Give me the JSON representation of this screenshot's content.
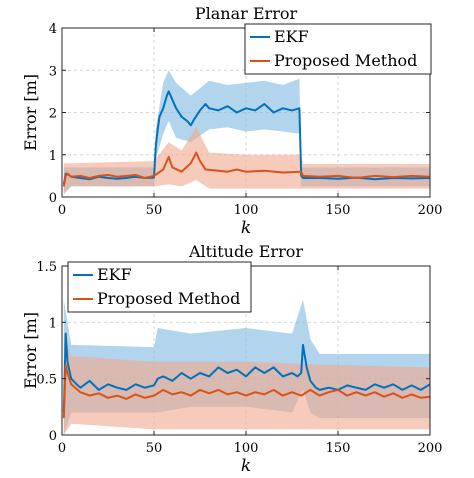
{
  "chart_data": [
    {
      "type": "line",
      "title": "Planar Error",
      "xlabel": "k",
      "ylabel": "Error [m]",
      "xlim": [
        0,
        200
      ],
      "ylim": [
        0,
        4
      ],
      "xticks": [
        "0",
        "50",
        "100",
        "150",
        "200"
      ],
      "yticks": [
        "0",
        "1",
        "2",
        "3",
        "4"
      ],
      "grid": true,
      "legend_position": "top-right",
      "series": [
        {
          "name": "EKF",
          "color": "#0072BD",
          "band_color": "#7FB7E0",
          "points": [
            [
              1,
              0.3
            ],
            [
              2,
              0.55
            ],
            [
              3,
              0.55
            ],
            [
              5,
              0.48
            ],
            [
              10,
              0.45
            ],
            [
              15,
              0.42
            ],
            [
              20,
              0.48
            ],
            [
              25,
              0.45
            ],
            [
              30,
              0.43
            ],
            [
              35,
              0.45
            ],
            [
              40,
              0.48
            ],
            [
              45,
              0.45
            ],
            [
              50,
              0.46
            ],
            [
              51,
              1.2
            ],
            [
              52,
              1.6
            ],
            [
              53,
              1.9
            ],
            [
              55,
              2.1
            ],
            [
              57,
              2.4
            ],
            [
              58,
              2.5
            ],
            [
              60,
              2.3
            ],
            [
              62,
              2.1
            ],
            [
              65,
              1.9
            ],
            [
              68,
              1.8
            ],
            [
              70,
              1.7
            ],
            [
              72,
              1.85
            ],
            [
              75,
              2.05
            ],
            [
              78,
              2.2
            ],
            [
              80,
              2.1
            ],
            [
              85,
              2.05
            ],
            [
              90,
              2.15
            ],
            [
              95,
              2.0
            ],
            [
              100,
              2.1
            ],
            [
              105,
              2.05
            ],
            [
              110,
              2.2
            ],
            [
              115,
              2.0
            ],
            [
              120,
              2.1
            ],
            [
              125,
              2.05
            ],
            [
              129,
              2.1
            ],
            [
              130,
              0.5
            ],
            [
              131,
              0.45
            ],
            [
              140,
              0.45
            ],
            [
              150,
              0.43
            ],
            [
              160,
              0.46
            ],
            [
              170,
              0.42
            ],
            [
              180,
              0.45
            ],
            [
              190,
              0.44
            ],
            [
              200,
              0.45
            ]
          ],
          "band": [
            [
              1,
              0.1,
              0.7
            ],
            [
              5,
              0.25,
              0.7
            ],
            [
              50,
              0.25,
              0.7
            ],
            [
              51,
              0.9,
              1.6
            ],
            [
              55,
              1.5,
              2.7
            ],
            [
              58,
              1.8,
              3.0
            ],
            [
              62,
              1.4,
              2.7
            ],
            [
              70,
              1.3,
              2.4
            ],
            [
              80,
              1.6,
              2.75
            ],
            [
              90,
              1.65,
              2.65
            ],
            [
              100,
              1.55,
              2.7
            ],
            [
              110,
              1.6,
              2.75
            ],
            [
              120,
              1.55,
              2.65
            ],
            [
              129,
              1.5,
              2.8
            ],
            [
              130,
              0.25,
              0.7
            ],
            [
              200,
              0.25,
              0.7
            ]
          ]
        },
        {
          "name": "Proposed Method",
          "color": "#D95319",
          "band_color": "#F2A98E",
          "points": [
            [
              1,
              0.25
            ],
            [
              2,
              0.5
            ],
            [
              3,
              0.55
            ],
            [
              5,
              0.48
            ],
            [
              10,
              0.5
            ],
            [
              15,
              0.45
            ],
            [
              20,
              0.5
            ],
            [
              25,
              0.52
            ],
            [
              30,
              0.48
            ],
            [
              35,
              0.5
            ],
            [
              40,
              0.52
            ],
            [
              45,
              0.45
            ],
            [
              50,
              0.5
            ],
            [
              55,
              0.65
            ],
            [
              58,
              0.95
            ],
            [
              60,
              0.7
            ],
            [
              65,
              0.6
            ],
            [
              70,
              0.8
            ],
            [
              73,
              1.05
            ],
            [
              75,
              0.85
            ],
            [
              78,
              0.65
            ],
            [
              85,
              0.62
            ],
            [
              90,
              0.6
            ],
            [
              95,
              0.65
            ],
            [
              100,
              0.6
            ],
            [
              110,
              0.62
            ],
            [
              120,
              0.58
            ],
            [
              130,
              0.6
            ],
            [
              131,
              0.5
            ],
            [
              140,
              0.48
            ],
            [
              150,
              0.5
            ],
            [
              160,
              0.45
            ],
            [
              170,
              0.5
            ],
            [
              180,
              0.47
            ],
            [
              190,
              0.5
            ],
            [
              200,
              0.48
            ]
          ],
          "band": [
            [
              1,
              0.05,
              0.8
            ],
            [
              5,
              0.25,
              0.8
            ],
            [
              50,
              0.25,
              0.85
            ],
            [
              58,
              0.3,
              1.3
            ],
            [
              65,
              0.25,
              1.1
            ],
            [
              73,
              0.4,
              1.65
            ],
            [
              80,
              0.2,
              1.05
            ],
            [
              100,
              0.2,
              1.0
            ],
            [
              130,
              0.2,
              1.0
            ],
            [
              131,
              0.2,
              0.78
            ],
            [
              200,
              0.2,
              0.78
            ]
          ]
        }
      ]
    },
    {
      "type": "line",
      "title": "Altitude Error",
      "xlabel": "k",
      "ylabel": "Error [m]",
      "xlim": [
        0,
        200
      ],
      "ylim": [
        0,
        1.5
      ],
      "xticks": [
        "0",
        "50",
        "100",
        "150",
        "200"
      ],
      "yticks": [
        "0",
        "0.5",
        "1",
        "1.5"
      ],
      "grid": true,
      "legend_position": "top-left",
      "series": [
        {
          "name": "EKF",
          "color": "#0072BD",
          "band_color": "#7FB7E0",
          "points": [
            [
              1,
              0.2
            ],
            [
              2,
              0.9
            ],
            [
              3,
              0.65
            ],
            [
              5,
              0.5
            ],
            [
              8,
              0.45
            ],
            [
              10,
              0.42
            ],
            [
              15,
              0.48
            ],
            [
              20,
              0.4
            ],
            [
              25,
              0.45
            ],
            [
              30,
              0.42
            ],
            [
              35,
              0.4
            ],
            [
              40,
              0.45
            ],
            [
              45,
              0.42
            ],
            [
              50,
              0.44
            ],
            [
              52,
              0.5
            ],
            [
              55,
              0.52
            ],
            [
              60,
              0.48
            ],
            [
              65,
              0.55
            ],
            [
              70,
              0.5
            ],
            [
              75,
              0.55
            ],
            [
              80,
              0.52
            ],
            [
              85,
              0.6
            ],
            [
              90,
              0.55
            ],
            [
              95,
              0.58
            ],
            [
              100,
              0.52
            ],
            [
              105,
              0.6
            ],
            [
              110,
              0.55
            ],
            [
              115,
              0.6
            ],
            [
              120,
              0.52
            ],
            [
              125,
              0.55
            ],
            [
              128,
              0.52
            ],
            [
              130,
              0.55
            ],
            [
              131,
              0.8
            ],
            [
              133,
              0.6
            ],
            [
              135,
              0.48
            ],
            [
              138,
              0.42
            ],
            [
              140,
              0.4
            ],
            [
              145,
              0.42
            ],
            [
              150,
              0.4
            ],
            [
              155,
              0.44
            ],
            [
              160,
              0.42
            ],
            [
              165,
              0.4
            ],
            [
              170,
              0.45
            ],
            [
              175,
              0.42
            ],
            [
              180,
              0.45
            ],
            [
              185,
              0.4
            ],
            [
              190,
              0.44
            ],
            [
              195,
              0.4
            ],
            [
              200,
              0.45
            ]
          ],
          "band": [
            [
              1,
              0.0,
              1.2
            ],
            [
              5,
              0.2,
              0.8
            ],
            [
              50,
              0.2,
              0.78
            ],
            [
              52,
              0.2,
              0.95
            ],
            [
              70,
              0.25,
              0.9
            ],
            [
              100,
              0.25,
              0.95
            ],
            [
              125,
              0.2,
              0.9
            ],
            [
              131,
              0.4,
              1.2
            ],
            [
              135,
              0.2,
              0.85
            ],
            [
              140,
              0.15,
              0.72
            ],
            [
              200,
              0.15,
              0.72
            ]
          ]
        },
        {
          "name": "Proposed Method",
          "color": "#D95319",
          "band_color": "#F2A98E",
          "points": [
            [
              1,
              0.15
            ],
            [
              2,
              0.62
            ],
            [
              3,
              0.55
            ],
            [
              5,
              0.45
            ],
            [
              10,
              0.38
            ],
            [
              15,
              0.35
            ],
            [
              20,
              0.37
            ],
            [
              25,
              0.33
            ],
            [
              30,
              0.35
            ],
            [
              35,
              0.32
            ],
            [
              40,
              0.36
            ],
            [
              45,
              0.33
            ],
            [
              50,
              0.35
            ],
            [
              55,
              0.4
            ],
            [
              60,
              0.36
            ],
            [
              65,
              0.38
            ],
            [
              70,
              0.35
            ],
            [
              75,
              0.4
            ],
            [
              80,
              0.37
            ],
            [
              85,
              0.4
            ],
            [
              90,
              0.36
            ],
            [
              95,
              0.38
            ],
            [
              100,
              0.35
            ],
            [
              105,
              0.38
            ],
            [
              110,
              0.36
            ],
            [
              115,
              0.4
            ],
            [
              120,
              0.35
            ],
            [
              125,
              0.38
            ],
            [
              130,
              0.35
            ],
            [
              135,
              0.4
            ],
            [
              140,
              0.35
            ],
            [
              145,
              0.38
            ],
            [
              150,
              0.4
            ],
            [
              155,
              0.35
            ],
            [
              160,
              0.38
            ],
            [
              165,
              0.35
            ],
            [
              170,
              0.38
            ],
            [
              175,
              0.34
            ],
            [
              180,
              0.37
            ],
            [
              185,
              0.33
            ],
            [
              190,
              0.36
            ],
            [
              195,
              0.33
            ],
            [
              200,
              0.34
            ]
          ],
          "band": [
            [
              1,
              0.0,
              0.9
            ],
            [
              5,
              0.1,
              0.7
            ],
            [
              50,
              0.05,
              0.65
            ],
            [
              100,
              0.05,
              0.65
            ],
            [
              150,
              0.05,
              0.62
            ],
            [
              200,
              0.05,
              0.6
            ]
          ]
        }
      ]
    }
  ]
}
